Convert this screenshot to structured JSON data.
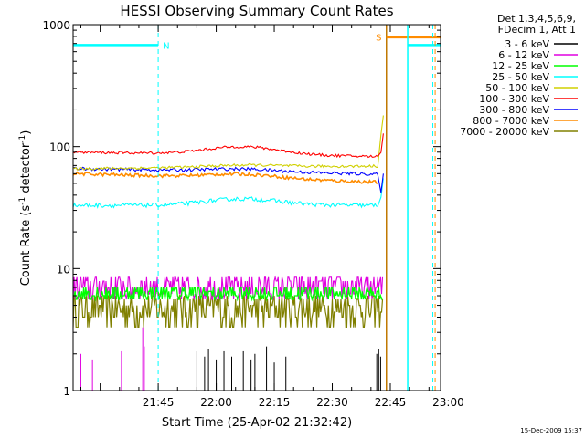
{
  "chart_data": {
    "type": "line",
    "title": "HESSI Observing Summary Count Rates",
    "xlabel": "Start Time (25-Apr-02 21:32:42)",
    "ylabel_main": "Count Rate (s",
    "ylabel_sup1": "-1",
    "ylabel_mid": " detector",
    "ylabel_sup2": "-1",
    "ylabel_end": ")",
    "y_scale": "log",
    "ylim": [
      1,
      1000
    ],
    "xlim_minutes": [
      -22,
      73
    ],
    "x_ticks": [
      {
        "min": 0,
        "label": "21:45"
      },
      {
        "min": 15,
        "label": "22:00"
      },
      {
        "min": 30,
        "label": "22:15"
      },
      {
        "min": 45,
        "label": "22:30"
      },
      {
        "min": 60,
        "label": "22:45"
      },
      {
        "min": 75,
        "label": "23:00"
      }
    ],
    "y_ticks": [
      {
        "value": 1,
        "label": "1"
      },
      {
        "value": 10,
        "label": "10"
      },
      {
        "value": 100,
        "label": "100"
      },
      {
        "value": 1000,
        "label": "1000"
      }
    ],
    "legend_header": [
      "Det 1,3,4,5,6,9,",
      "FDecim 1, Att 1"
    ],
    "series": [
      {
        "name": "3 - 6 keV",
        "color": "#000000"
      },
      {
        "name": "6 - 12 keV",
        "color": "#e000e0"
      },
      {
        "name": "12 - 25 keV",
        "color": "#00ff00"
      },
      {
        "name": "25 - 50 keV",
        "color": "#00ffff"
      },
      {
        "name": "50 - 100 keV",
        "color": "#d0d000"
      },
      {
        "name": "100 - 300 keV",
        "color": "#ff0000"
      },
      {
        "name": "300 - 800 keV",
        "color": "#0000ff"
      },
      {
        "name": "800 - 7000 keV",
        "color": "#ff8c00"
      },
      {
        "name": "7000 - 20000 keV",
        "color": "#808000"
      }
    ],
    "markers": [
      {
        "label": "N",
        "color": "#00ffff"
      },
      {
        "label": "S",
        "color": "#ff8c00"
      }
    ],
    "timestamp": "15-Dec-2009 15:37"
  }
}
